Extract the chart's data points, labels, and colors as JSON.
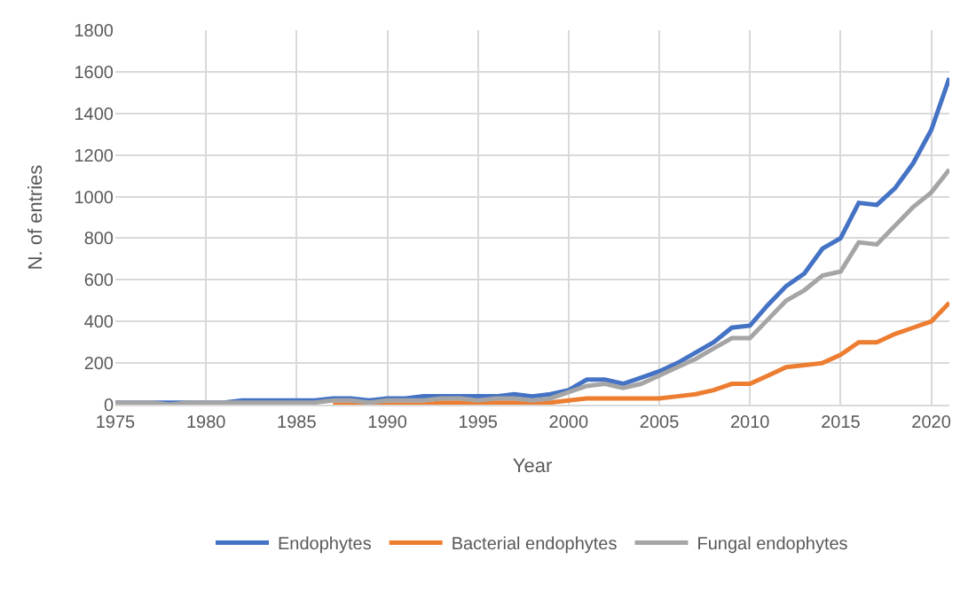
{
  "chart_data": {
    "type": "line",
    "xlabel": "Year",
    "ylabel": "N. of entries",
    "x": [
      1975,
      1976,
      1977,
      1978,
      1979,
      1980,
      1981,
      1982,
      1983,
      1984,
      1985,
      1986,
      1987,
      1988,
      1989,
      1990,
      1991,
      1992,
      1993,
      1994,
      1995,
      1996,
      1997,
      1998,
      1999,
      2000,
      2001,
      2002,
      2003,
      2004,
      2005,
      2006,
      2007,
      2008,
      2009,
      2010,
      2011,
      2012,
      2013,
      2014,
      2015,
      2016,
      2017,
      2018,
      2019,
      2020,
      2021
    ],
    "series": [
      {
        "name": "Endophytes",
        "color": "#4472c4",
        "values": [
          10,
          10,
          10,
          10,
          10,
          10,
          10,
          20,
          20,
          20,
          20,
          20,
          30,
          30,
          20,
          30,
          30,
          40,
          40,
          40,
          40,
          40,
          50,
          40,
          50,
          70,
          120,
          120,
          100,
          130,
          160,
          200,
          250,
          300,
          370,
          380,
          480,
          570,
          630,
          750,
          800,
          970,
          960,
          1040,
          1160,
          1320,
          1570
        ]
      },
      {
        "name": "Bacterial endophytes",
        "color": "#ed7d31",
        "values": [
          null,
          null,
          null,
          null,
          null,
          null,
          null,
          null,
          null,
          null,
          null,
          null,
          0,
          0,
          0,
          0,
          0,
          0,
          10,
          10,
          10,
          10,
          10,
          10,
          10,
          20,
          30,
          30,
          30,
          30,
          30,
          40,
          50,
          70,
          100,
          100,
          140,
          180,
          190,
          200,
          240,
          300,
          300,
          340,
          370,
          400,
          490
        ]
      },
      {
        "name": "Fungal endophytes",
        "color": "#a5a5a5",
        "values": [
          10,
          10,
          10,
          0,
          10,
          10,
          10,
          10,
          10,
          10,
          10,
          10,
          20,
          20,
          10,
          20,
          20,
          20,
          30,
          30,
          20,
          30,
          30,
          20,
          30,
          60,
          90,
          100,
          80,
          100,
          140,
          180,
          220,
          270,
          320,
          320,
          410,
          500,
          550,
          620,
          640,
          780,
          770,
          860,
          950,
          1020,
          1130
        ]
      }
    ],
    "xlim": [
      1975,
      2021
    ],
    "xticks": [
      1975,
      1980,
      1985,
      1990,
      1995,
      2000,
      2005,
      2010,
      2015,
      2020
    ],
    "ylim": [
      0,
      1800
    ],
    "yticks": [
      0,
      200,
      400,
      600,
      800,
      1000,
      1200,
      1400,
      1600,
      1800
    ],
    "grid": true,
    "legend": "bottom",
    "marker": "none",
    "line_style": "solid"
  }
}
